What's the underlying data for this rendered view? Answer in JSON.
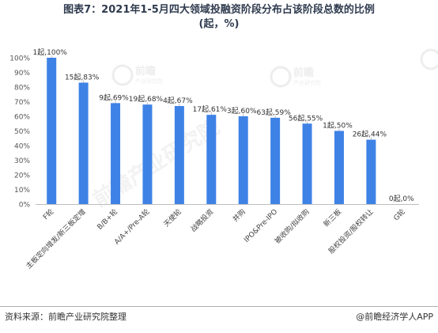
{
  "title_line1": "图表7：2021年1-5月四大领域投融资阶段分布占该阶段总数的比例",
  "title_line2": "(起，%)",
  "footer": {
    "source": "资料来源：前瞻产业研究院整理",
    "brand": "@前瞻经济学人APP"
  },
  "watermark": {
    "logo_text": "前瞻",
    "logo_sub": "产业研究院",
    "large_text": "前瞻产业研究院"
  },
  "colors": {
    "bar": "#3e82e6",
    "title": "#2f3b4f"
  },
  "chart_data": {
    "type": "bar",
    "categories": [
      "F轮",
      "主板定向增发/新三板定增",
      "B/B+轮",
      "A/A+/Pre-A轮",
      "天使轮",
      "战略投资",
      "并购",
      "IPO&Pre-IPO",
      "被收购/拟收购",
      "新三板",
      "股权投资/股权转让",
      "G轮"
    ],
    "values": [
      100,
      83,
      69,
      68,
      67,
      61,
      60,
      59,
      55,
      50,
      44,
      0
    ],
    "data_labels": [
      "1起,100%",
      "15起,83%",
      "9起,69%",
      "19起,68%",
      "4起,67%",
      "17起,61%",
      "3起,60%",
      "63起,59%",
      "56起,55%",
      "1起,50%",
      "26起,44%",
      "0起,0%"
    ],
    "ylim": [
      0,
      100
    ],
    "yticks": [
      "0%",
      "10%",
      "20%",
      "30%",
      "40%",
      "50%",
      "60%",
      "70%",
      "80%",
      "90%",
      "100%"
    ],
    "grid": false,
    "legend": "none"
  }
}
